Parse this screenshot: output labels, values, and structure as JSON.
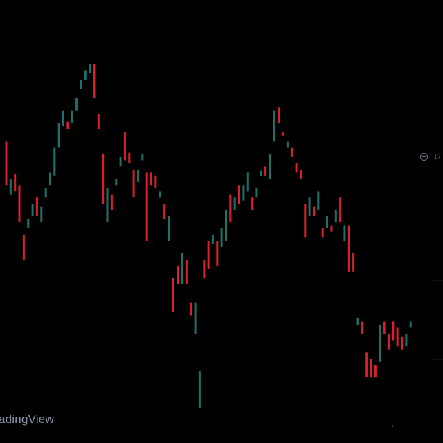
{
  "watermark": {
    "text": "adingView"
  },
  "price_scale": {
    "visible_label": "17"
  },
  "header": {
    "text_1": "",
    "text_2": ""
  },
  "colors": {
    "background": "#000000",
    "up_candle": "#1f6f6b",
    "down_candle": "#d8212a",
    "watermark": "#8a93a3",
    "axis_text": "#4b5566"
  },
  "icons": {
    "crosshair": "crosshair-icon",
    "scroll": "chevron-right-icon"
  },
  "chart_data": {
    "type": "candlestick",
    "xlabel": "",
    "ylabel": "",
    "grid": false,
    "candles": [
      {
        "x": 1,
        "dir": "down",
        "high": 430,
        "low": 360
      },
      {
        "x": 2,
        "dir": "up",
        "high": 370,
        "low": 345
      },
      {
        "x": 3,
        "dir": "down",
        "high": 378,
        "low": 350
      },
      {
        "x": 4,
        "dir": "down",
        "high": 360,
        "low": 300
      },
      {
        "x": 5,
        "dir": "down",
        "high": 280,
        "low": 240
      },
      {
        "x": 6,
        "dir": "up",
        "high": 305,
        "low": 290
      },
      {
        "x": 7,
        "dir": "up",
        "high": 330,
        "low": 310
      },
      {
        "x": 8,
        "dir": "down",
        "high": 340,
        "low": 310
      },
      {
        "x": 9,
        "dir": "up",
        "high": 325,
        "low": 300
      },
      {
        "x": 10,
        "dir": "up",
        "high": 355,
        "low": 340
      },
      {
        "x": 11,
        "dir": "up",
        "high": 380,
        "low": 360
      },
      {
        "x": 12,
        "dir": "up",
        "high": 420,
        "low": 375
      },
      {
        "x": 13,
        "dir": "up",
        "high": 460,
        "low": 420
      },
      {
        "x": 14,
        "dir": "up",
        "high": 480,
        "low": 455
      },
      {
        "x": 15,
        "dir": "down",
        "high": 462,
        "low": 450
      },
      {
        "x": 16,
        "dir": "up",
        "high": 480,
        "low": 460
      },
      {
        "x": 17,
        "dir": "up",
        "high": 500,
        "low": 480
      },
      {
        "x": 18,
        "dir": "up",
        "high": 530,
        "low": 515
      },
      {
        "x": 19,
        "dir": "up",
        "high": 545,
        "low": 530
      },
      {
        "x": 20,
        "dir": "up",
        "high": 555,
        "low": 540
      },
      {
        "x": 21,
        "dir": "down",
        "high": 555,
        "low": 500
      },
      {
        "x": 22,
        "dir": "down",
        "high": 475,
        "low": 450
      },
      {
        "x": 23,
        "dir": "down",
        "high": 410,
        "low": 330
      },
      {
        "x": 24,
        "dir": "up",
        "high": 355,
        "low": 300
      },
      {
        "x": 25,
        "dir": "down",
        "high": 345,
        "low": 320
      },
      {
        "x": 26,
        "dir": "up",
        "high": 370,
        "low": 360
      },
      {
        "x": 27,
        "dir": "up",
        "high": 405,
        "low": 390
      },
      {
        "x": 28,
        "dir": "down",
        "high": 445,
        "low": 400
      },
      {
        "x": 29,
        "dir": "down",
        "high": 412,
        "low": 395
      },
      {
        "x": 30,
        "dir": "down",
        "high": 385,
        "low": 340
      },
      {
        "x": 31,
        "dir": "up",
        "high": 385,
        "low": 365
      },
      {
        "x": 32,
        "dir": "up",
        "high": 410,
        "low": 400
      },
      {
        "x": 33,
        "dir": "down",
        "high": 380,
        "low": 270
      },
      {
        "x": 34,
        "dir": "down",
        "high": 380,
        "low": 360
      },
      {
        "x": 35,
        "dir": "down",
        "high": 375,
        "low": 355
      },
      {
        "x": 36,
        "dir": "up",
        "high": 350,
        "low": 340
      },
      {
        "x": 37,
        "dir": "down",
        "high": 330,
        "low": 305
      },
      {
        "x": 38,
        "dir": "up",
        "high": 310,
        "low": 270
      },
      {
        "x": 39,
        "dir": "down",
        "high": 210,
        "low": 155
      },
      {
        "x": 40,
        "dir": "down",
        "high": 230,
        "low": 200
      },
      {
        "x": 41,
        "dir": "up",
        "high": 250,
        "low": 200
      },
      {
        "x": 42,
        "dir": "down",
        "high": 240,
        "low": 200
      },
      {
        "x": 43,
        "dir": "down",
        "high": 170,
        "low": 150
      },
      {
        "x": 44,
        "dir": "up",
        "high": 170,
        "low": 120
      },
      {
        "x": 45,
        "dir": "up",
        "high": 60,
        "low": 0
      },
      {
        "x": 46,
        "dir": "down",
        "high": 240,
        "low": 210
      },
      {
        "x": 47,
        "dir": "down",
        "high": 270,
        "low": 225
      },
      {
        "x": 48,
        "dir": "up",
        "high": 280,
        "low": 265
      },
      {
        "x": 49,
        "dir": "down",
        "high": 270,
        "low": 230
      },
      {
        "x": 50,
        "dir": "up",
        "high": 290,
        "low": 260
      },
      {
        "x": 51,
        "dir": "up",
        "high": 320,
        "low": 270
      },
      {
        "x": 52,
        "dir": "down",
        "high": 345,
        "low": 300
      },
      {
        "x": 53,
        "dir": "up",
        "high": 340,
        "low": 320
      },
      {
        "x": 54,
        "dir": "down",
        "high": 360,
        "low": 330
      },
      {
        "x": 55,
        "dir": "up",
        "high": 360,
        "low": 335
      },
      {
        "x": 56,
        "dir": "up",
        "high": 380,
        "low": 350
      },
      {
        "x": 57,
        "dir": "down",
        "high": 340,
        "low": 320
      },
      {
        "x": 58,
        "dir": "up",
        "high": 355,
        "low": 340
      },
      {
        "x": 59,
        "dir": "up",
        "high": 383,
        "low": 375
      },
      {
        "x": 60,
        "dir": "down",
        "high": 390,
        "low": 375
      },
      {
        "x": 61,
        "dir": "up",
        "high": 410,
        "low": 370
      },
      {
        "x": 62,
        "dir": "up",
        "high": 480,
        "low": 430
      },
      {
        "x": 63,
        "dir": "down",
        "high": 485,
        "low": 460
      },
      {
        "x": 64,
        "dir": "down",
        "high": 445,
        "low": 440
      },
      {
        "x": 65,
        "dir": "up",
        "high": 430,
        "low": 420
      },
      {
        "x": 66,
        "dir": "down",
        "high": 420,
        "low": 405
      },
      {
        "x": 67,
        "dir": "down",
        "high": 395,
        "low": 380
      },
      {
        "x": 68,
        "dir": "down",
        "high": 385,
        "low": 370
      },
      {
        "x": 69,
        "dir": "down",
        "high": 330,
        "low": 275
      },
      {
        "x": 70,
        "dir": "up",
        "high": 340,
        "low": 310
      },
      {
        "x": 71,
        "dir": "down",
        "high": 325,
        "low": 310
      },
      {
        "x": 72,
        "dir": "up",
        "high": 350,
        "low": 320
      },
      {
        "x": 73,
        "dir": "down",
        "high": 290,
        "low": 275
      },
      {
        "x": 74,
        "dir": "up",
        "high": 310,
        "low": 290
      },
      {
        "x": 75,
        "dir": "down",
        "high": 295,
        "low": 285
      },
      {
        "x": 76,
        "dir": "up",
        "high": 320,
        "low": 300
      },
      {
        "x": 77,
        "dir": "down",
        "high": 340,
        "low": 300
      },
      {
        "x": 78,
        "dir": "up",
        "high": 295,
        "low": 270
      },
      {
        "x": 79,
        "dir": "down",
        "high": 295,
        "low": 220
      },
      {
        "x": 80,
        "dir": "down",
        "high": 250,
        "low": 220
      },
      {
        "x": 81,
        "dir": "up",
        "high": 145,
        "low": 135
      },
      {
        "x": 82,
        "dir": "down",
        "high": 140,
        "low": 120
      },
      {
        "x": 83,
        "dir": "down",
        "high": 90,
        "low": 50
      },
      {
        "x": 84,
        "dir": "down",
        "high": 80,
        "low": 50
      },
      {
        "x": 85,
        "dir": "down",
        "high": 70,
        "low": 50
      },
      {
        "x": 86,
        "dir": "up",
        "high": 135,
        "low": 75
      },
      {
        "x": 87,
        "dir": "down",
        "high": 140,
        "low": 120
      },
      {
        "x": 88,
        "dir": "down",
        "high": 120,
        "low": 95
      },
      {
        "x": 89,
        "dir": "down",
        "high": 140,
        "low": 110
      },
      {
        "x": 90,
        "dir": "down",
        "high": 130,
        "low": 100
      },
      {
        "x": 91,
        "dir": "down",
        "high": 115,
        "low": 95
      },
      {
        "x": 92,
        "dir": "up",
        "high": 120,
        "low": 100
      },
      {
        "x": 93,
        "dir": "up",
        "high": 140,
        "low": 130
      }
    ]
  }
}
